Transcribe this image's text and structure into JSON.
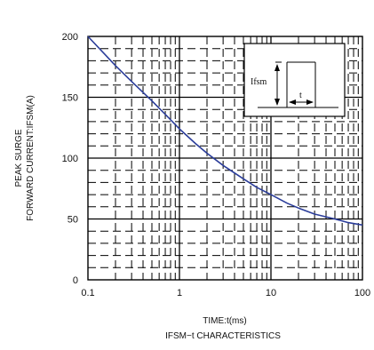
{
  "chart_data": {
    "type": "line",
    "xscale": "log",
    "xlim": [
      0.1,
      100
    ],
    "ylim": [
      0,
      200
    ],
    "x_ticks": [
      "0.1",
      "1",
      "10",
      "100"
    ],
    "y_ticks": [
      "0",
      "50",
      "100",
      "150",
      "200"
    ],
    "ylabel_line1": "PEAK SURGE",
    "ylabel_line2": "FORWARD CURRENT:IFSM(A)",
    "xlabel": "TIME:t(ms)",
    "caption": "IFSM−t CHARACTERISTICS",
    "grid": true,
    "series": [
      {
        "color": "#2b3d9a",
        "x": [
          0.1,
          0.15,
          0.2,
          0.3,
          0.5,
          0.7,
          1,
          1.5,
          2,
          3,
          5,
          7,
          10,
          15,
          20,
          30,
          50,
          70,
          100
        ],
        "y": [
          200,
          186,
          176,
          163,
          147,
          136,
          124,
          112,
          104,
          94,
          83,
          76,
          70,
          63,
          59,
          54,
          50,
          47,
          45
        ]
      }
    ],
    "inset": {
      "label_current": "Ifsm",
      "label_time": "t"
    }
  }
}
